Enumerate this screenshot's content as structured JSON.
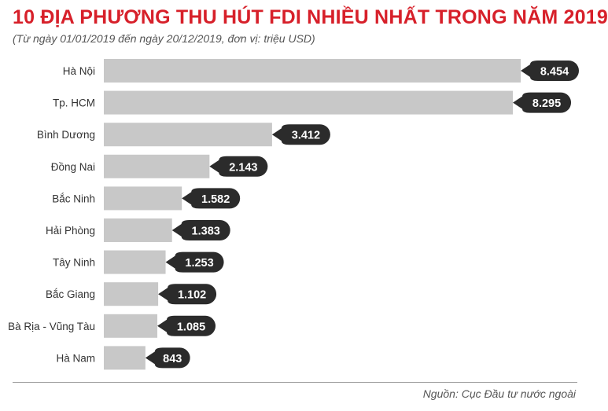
{
  "header": {
    "title": "10 ĐỊA PHƯƠNG THU HÚT FDI NHIỀU NHẤT TRONG NĂM 2019",
    "subtitle": "(Từ ngày 01/01/2019 đến ngày 20/12/2019, đơn vị: triệu USD)"
  },
  "footer": {
    "source": "Nguồn: Cục Đầu tư nước ngoài"
  },
  "colors": {
    "title": "#d7202a",
    "bar": "#c8c8c8",
    "label_bubble": "#2b2b2b",
    "label_text": "#ffffff"
  },
  "chart_data": {
    "type": "bar",
    "orientation": "horizontal",
    "categories": [
      "Hà Nội",
      "Tp. HCM",
      "Bình Dương",
      "Đồng Nai",
      "Bắc Ninh",
      "Hải Phòng",
      "Tây Ninh",
      "Bắc Giang",
      "Bà Rịa - Vũng Tàu",
      "Hà Nam"
    ],
    "values": [
      8454,
      8295,
      3412,
      2143,
      1582,
      1383,
      1253,
      1102,
      1085,
      843
    ],
    "value_labels": [
      "8.454",
      "8.295",
      "3.412",
      "2.143",
      "1.582",
      "1.383",
      "1.253",
      "1.102",
      "1.085",
      "843"
    ],
    "title": "10 ĐỊA PHƯƠNG THU HÚT FDI NHIỀU NHẤT TRONG NĂM 2019",
    "xlabel": "",
    "ylabel": "",
    "xlim": [
      0,
      8454
    ],
    "grid": false,
    "legend": "none"
  }
}
